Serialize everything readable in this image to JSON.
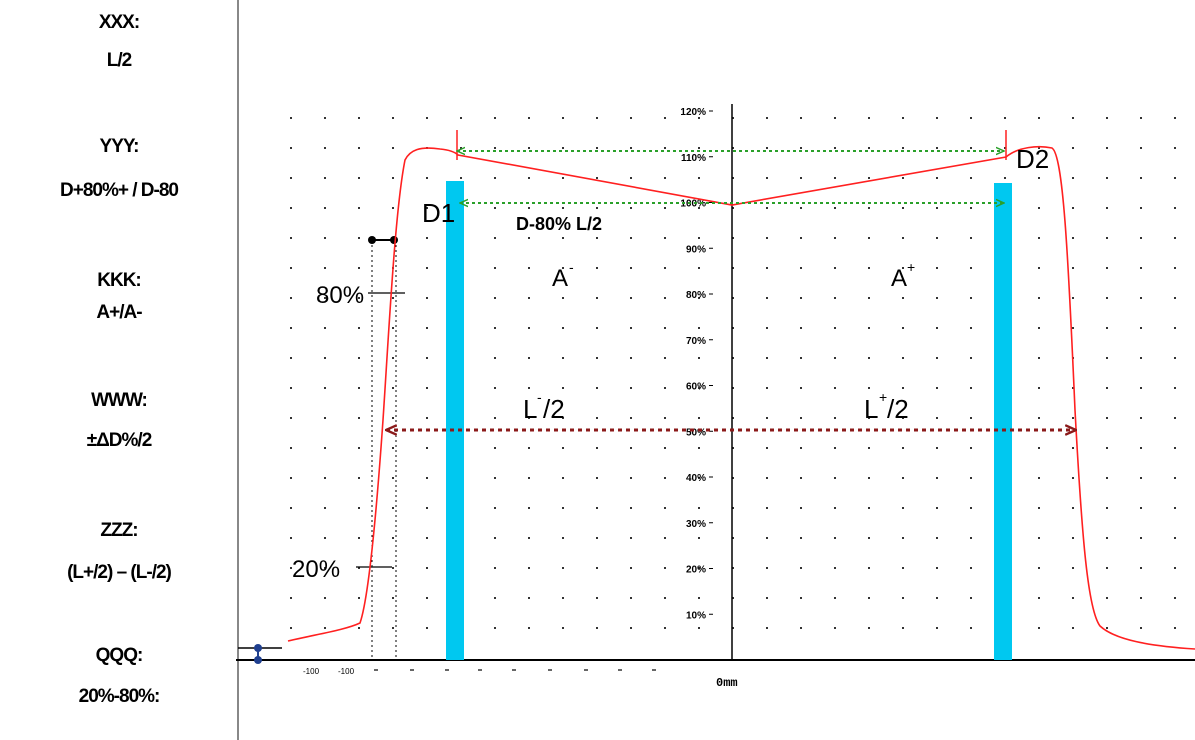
{
  "legend": [
    {
      "key": "XXX:",
      "value": "L/2"
    },
    {
      "key": "YYY:",
      "value": "D+80%+ / D-80"
    },
    {
      "key": "KKK:",
      "value": "A+/A-"
    },
    {
      "key": "WWW:",
      "value": "±ΔD%/2"
    },
    {
      "key": "ZZZ:",
      "value": "(L+/2) – (L-/2)"
    },
    {
      "key": "QQQ:",
      "value": "20%-80%:"
    }
  ],
  "axis": {
    "y_ticks": [
      "10%",
      "20%",
      "30%",
      "40%",
      "50%",
      "60%",
      "70%",
      "80%",
      "90%",
      "100%",
      "110%",
      "120%"
    ],
    "x_origin_label": "0mm",
    "x_small_labels": [
      "-100",
      "-100"
    ]
  },
  "labels": {
    "d1": "D1",
    "d2": "D2",
    "d80": "D-80%  L/2",
    "a_minus": "A",
    "a_minus_sup": "-",
    "a_plus": "A",
    "a_plus_sup": "+",
    "l_minus": "L",
    "l_minus_sup": "-",
    "l_minus_tail": "/2",
    "l_plus": "L",
    "l_plus_sup": "+",
    "l_plus_tail": "/2",
    "p80": "80%",
    "p20": "20%"
  },
  "colors": {
    "profile": "#ff2020",
    "marker_bar": "#00c8f0",
    "green_arrow": "#2aa02a",
    "red_arrow": "#8b1a1a",
    "axis": "#000000"
  }
}
